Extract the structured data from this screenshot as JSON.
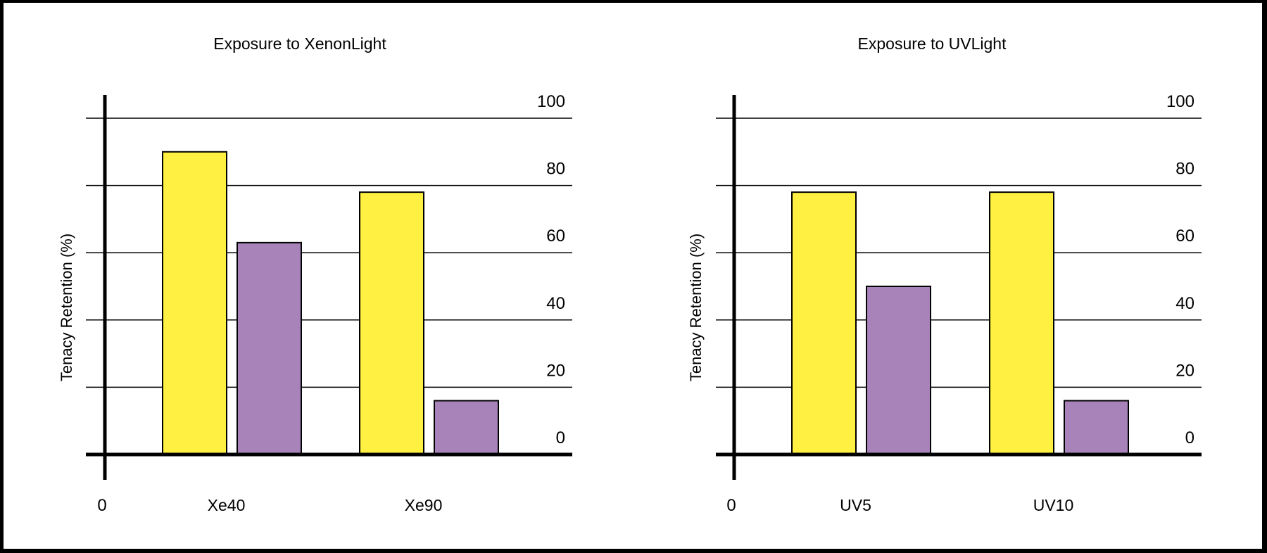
{
  "chart_data": [
    {
      "type": "bar",
      "title": "Exposure to XenonLight",
      "xlabel": "",
      "ylabel": "Tenacy Retention (%)",
      "origin_label": "0",
      "categories": [
        "Xe40",
        "Xe90"
      ],
      "series": [
        {
          "color": "#FFF042",
          "values": [
            90,
            78
          ]
        },
        {
          "color": "#A883BA",
          "values": [
            63,
            16
          ]
        }
      ],
      "yticks": [
        0,
        20,
        40,
        60,
        80,
        100
      ],
      "ylim": [
        0,
        100
      ],
      "grid": true,
      "legend": "none"
    },
    {
      "type": "bar",
      "title": "Exposure to UVLight",
      "xlabel": "",
      "ylabel": "Tenacy Retention (%)",
      "origin_label": "0",
      "categories": [
        "UV5",
        "UV10"
      ],
      "series": [
        {
          "color": "#FFF042",
          "values": [
            78,
            78
          ]
        },
        {
          "color": "#A883BA",
          "values": [
            50,
            16
          ]
        }
      ],
      "yticks": [
        0,
        20,
        40,
        60,
        80,
        100
      ],
      "ylim": [
        0,
        100
      ],
      "grid": true,
      "legend": "none"
    }
  ]
}
